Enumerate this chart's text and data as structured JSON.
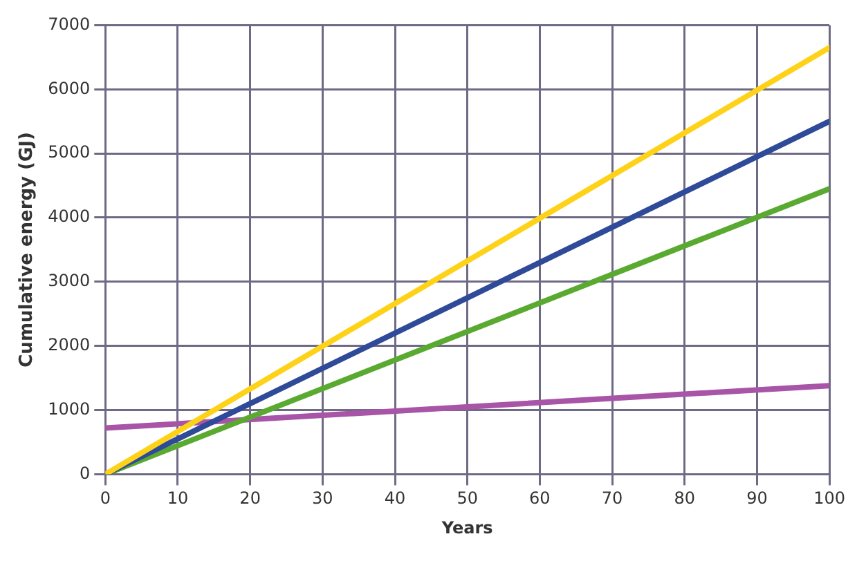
{
  "chart_data": {
    "type": "line",
    "xlabel": "Years",
    "ylabel": "Cumulative energy (GJ)",
    "x": [
      0,
      100
    ],
    "series": [
      {
        "color": "#ffd21a",
        "values": [
          0,
          6650
        ]
      },
      {
        "color": "#2e4a98",
        "values": [
          0,
          5500
        ]
      },
      {
        "color": "#5aaa32",
        "values": [
          0,
          4450
        ]
      },
      {
        "color": "#a855a8",
        "values": [
          720,
          1380
        ]
      }
    ],
    "xlim": [
      0,
      100
    ],
    "xticks": [
      0,
      10,
      20,
      30,
      40,
      50,
      60,
      70,
      80,
      90,
      100
    ],
    "ylim": [
      0,
      7000
    ],
    "yticks": [
      0,
      1000,
      2000,
      3000,
      4000,
      5000,
      6000,
      7000
    ],
    "grid": true,
    "legend": false,
    "marker": "none",
    "line_style": "solid"
  }
}
